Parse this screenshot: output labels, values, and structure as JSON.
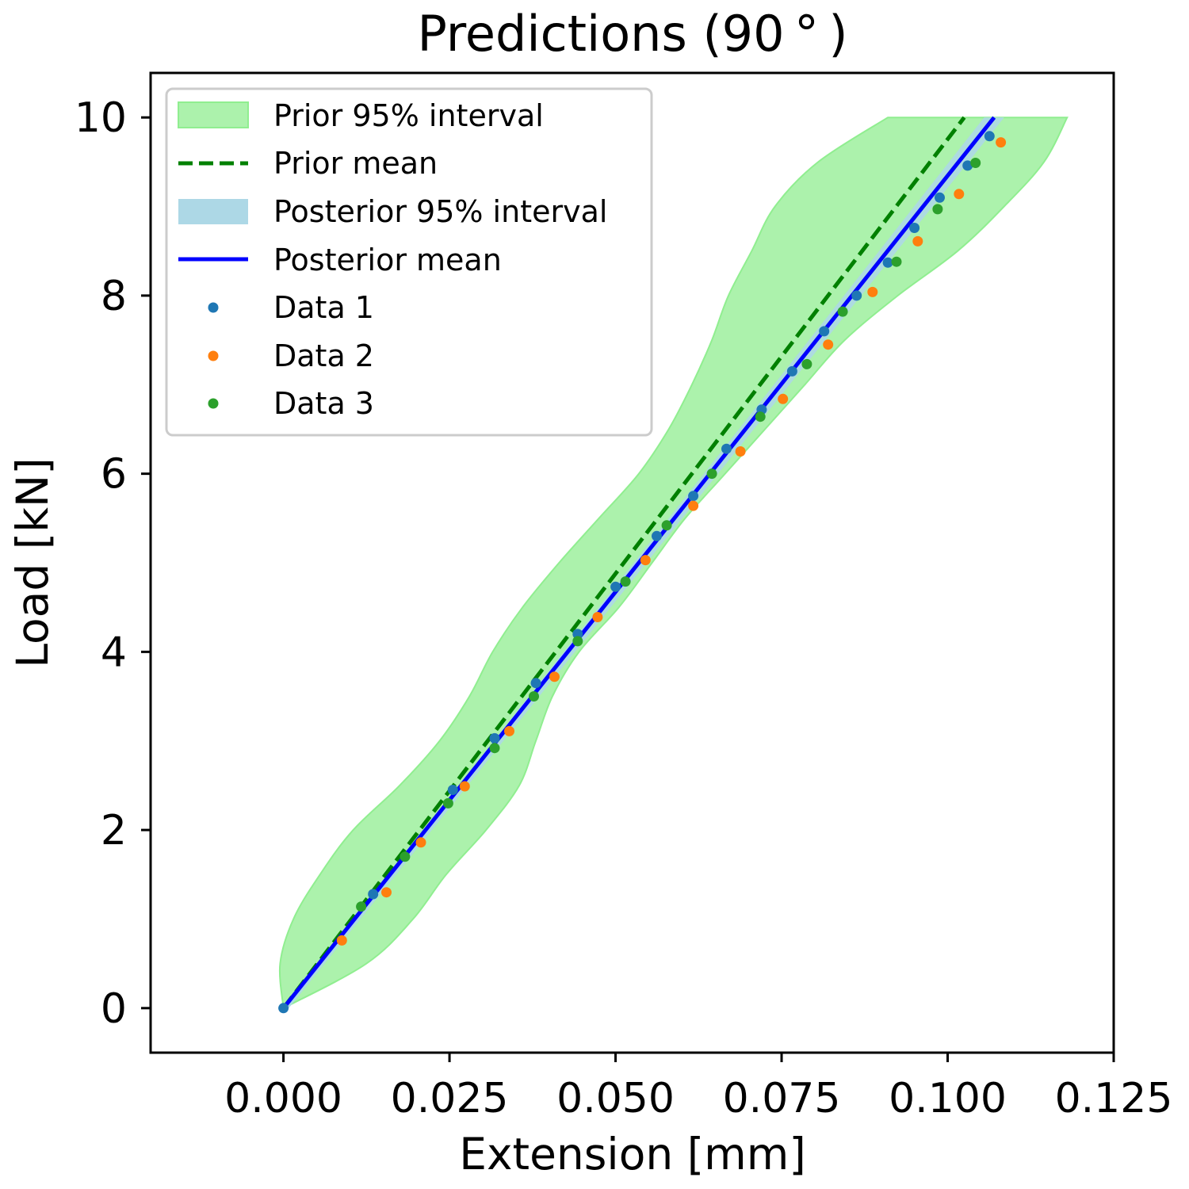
{
  "chart_data": {
    "type": "line",
    "title": "Predictions (90$^\\circ$)",
    "title_display": "Predictions (90 ° )",
    "xlabel": "Extension [mm]",
    "ylabel": "Load [kN]",
    "xlim": [
      -0.02,
      0.125
    ],
    "ylim": [
      -0.5,
      10.5
    ],
    "xticks": [
      0.0,
      0.025,
      0.05,
      0.075,
      0.1,
      0.125
    ],
    "xtick_labels": [
      "0.000",
      "0.025",
      "0.050",
      "0.075",
      "0.100",
      "0.125"
    ],
    "yticks": [
      0,
      2,
      4,
      6,
      8,
      10
    ],
    "ytick_labels": [
      "0",
      "2",
      "4",
      "6",
      "8",
      "10"
    ],
    "grid": false,
    "legend_position": "upper left",
    "colors": {
      "prior_band": "#90ee90",
      "prior_mean": "#008000",
      "posterior_band": "#add8e6",
      "posterior_mean": "#0000ff",
      "data1": "#1f77b4",
      "data2": "#ff7f0e",
      "data3": "#2ca02c"
    },
    "series": [
      {
        "name": "Prior 95% interval",
        "kind": "band",
        "y": [
          0,
          0.5,
          1,
          1.5,
          2,
          2.5,
          3,
          3.5,
          4,
          4.5,
          5,
          5.5,
          6,
          6.5,
          7,
          7.5,
          8,
          8.5,
          9,
          9.5,
          10
        ],
        "x_low": [
          0,
          -0.0005,
          0.0015,
          0.0055,
          0.0105,
          0.0175,
          0.0235,
          0.028,
          0.0315,
          0.036,
          0.0415,
          0.0475,
          0.0535,
          0.058,
          0.0615,
          0.0645,
          0.067,
          0.0705,
          0.074,
          0.0805,
          0.091
        ],
        "x_high": [
          0,
          0.0125,
          0.0195,
          0.0245,
          0.0305,
          0.0355,
          0.038,
          0.0405,
          0.0445,
          0.0505,
          0.0555,
          0.0605,
          0.0665,
          0.0725,
          0.0785,
          0.0845,
          0.0925,
          0.1015,
          0.1085,
          0.1145,
          0.118
        ]
      },
      {
        "name": "Prior mean",
        "kind": "line",
        "x": [
          0,
          0.1025
        ],
        "y": [
          0,
          10
        ]
      },
      {
        "name": "Posterior 95% interval",
        "kind": "band",
        "y": [
          0,
          10
        ],
        "x_low": [
          0,
          0.1055
        ],
        "x_high": [
          0.0008,
          0.1085
        ]
      },
      {
        "name": "Posterior mean",
        "kind": "line",
        "x": [
          0,
          0.107
        ],
        "y": [
          0,
          10
        ]
      },
      {
        "name": "Data 1",
        "kind": "scatter",
        "x": [
          0.0,
          0.0135,
          0.0255,
          0.0318,
          0.038,
          0.0443,
          0.05,
          0.0562,
          0.0617,
          0.0667,
          0.072,
          0.0766,
          0.0814,
          0.0863,
          0.091,
          0.095,
          0.0988,
          0.103,
          0.1063
        ],
        "y": [
          0.0,
          1.28,
          2.45,
          3.03,
          3.65,
          4.2,
          4.73,
          5.3,
          5.75,
          6.28,
          6.72,
          7.15,
          7.6,
          8.0,
          8.37,
          8.76,
          9.1,
          9.46,
          9.79
        ]
      },
      {
        "name": "Data 2",
        "kind": "scatter",
        "x": [
          0.0088,
          0.0155,
          0.0207,
          0.0273,
          0.034,
          0.0408,
          0.0473,
          0.0545,
          0.0617,
          0.0688,
          0.0752,
          0.082,
          0.0887,
          0.0955,
          0.1017,
          0.108
        ],
        "y": [
          0.76,
          1.3,
          1.86,
          2.49,
          3.11,
          3.72,
          4.39,
          5.03,
          5.64,
          6.25,
          6.84,
          7.45,
          8.04,
          8.61,
          9.14,
          9.72
        ]
      },
      {
        "name": "Data 3",
        "kind": "scatter",
        "x": [
          0.0117,
          0.0183,
          0.0248,
          0.0318,
          0.0377,
          0.0443,
          0.0515,
          0.0577,
          0.0645,
          0.0718,
          0.0788,
          0.0842,
          0.0923,
          0.0985,
          0.1042
        ],
        "y": [
          1.14,
          1.7,
          2.3,
          2.92,
          3.5,
          4.12,
          4.79,
          5.42,
          6.0,
          6.64,
          7.23,
          7.82,
          8.38,
          8.97,
          9.49
        ]
      }
    ]
  }
}
